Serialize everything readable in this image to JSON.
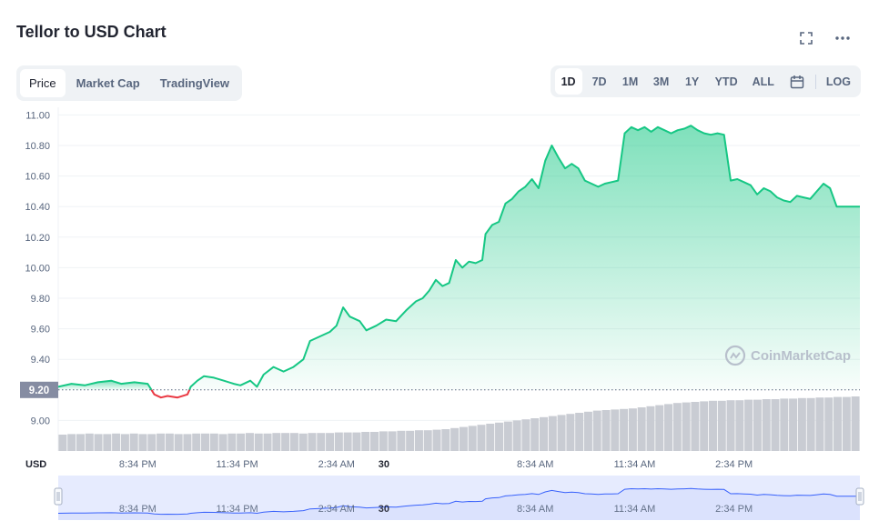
{
  "header": {
    "title": "Tellor to USD Chart"
  },
  "tabs": [
    {
      "label": "Price",
      "active": true
    },
    {
      "label": "Market Cap",
      "active": false
    },
    {
      "label": "TradingView",
      "active": false
    }
  ],
  "ranges": [
    {
      "label": "1D",
      "active": true
    },
    {
      "label": "7D",
      "active": false
    },
    {
      "label": "1M",
      "active": false
    },
    {
      "label": "3M",
      "active": false
    },
    {
      "label": "1Y",
      "active": false
    },
    {
      "label": "YTD",
      "active": false
    },
    {
      "label": "ALL",
      "active": false
    }
  ],
  "log_label": "LOG",
  "watermark": "CoinMarketCap",
  "colors": {
    "up": "#16c784",
    "down": "#ea3943",
    "volume": "#c9ccd3",
    "navigator_line": "#3861fb",
    "navigator_fill": "#e6ebfe",
    "current_badge": "#858ca2"
  },
  "chart_data": {
    "type": "area",
    "currency_label": "USD",
    "current_price_label": "9.20",
    "baseline": 9.2,
    "ylim": [
      8.8,
      11.05
    ],
    "yticks": [
      9.0,
      9.2,
      9.4,
      9.6,
      9.8,
      10.0,
      10.2,
      10.4,
      10.6,
      10.8,
      11.0
    ],
    "ytick_labels": [
      "9.00",
      "9.20",
      "9.40",
      "9.60",
      "9.80",
      "10.00",
      "10.20",
      "10.40",
      "10.60",
      "10.80",
      "11.00"
    ],
    "x_ticks": [
      {
        "label": "8:34 PM",
        "hour": 1.0,
        "bold": false
      },
      {
        "label": "11:34 PM",
        "hour": 4.0,
        "bold": false
      },
      {
        "label": "2:34 AM",
        "hour": 7.0,
        "bold": false
      },
      {
        "label": "30",
        "hour": 8.43,
        "bold": true
      },
      {
        "label": "8:34 AM",
        "hour": 13.0,
        "bold": false
      },
      {
        "label": "11:34 AM",
        "hour": 16.0,
        "bold": false
      },
      {
        "label": "2:34 PM",
        "hour": 19.0,
        "bold": false
      }
    ],
    "x_range_hours": [
      -1.4,
      22.8
    ],
    "series": [
      {
        "points": [
          [
            -1.4,
            9.22
          ],
          [
            -1.0,
            9.24
          ],
          [
            -0.6,
            9.23
          ],
          [
            -0.2,
            9.25
          ],
          [
            0.2,
            9.26
          ],
          [
            0.5,
            9.24
          ],
          [
            0.9,
            9.25
          ],
          [
            1.3,
            9.24
          ],
          [
            1.5,
            9.17
          ],
          [
            1.7,
            9.15
          ],
          [
            1.9,
            9.16
          ],
          [
            2.2,
            9.15
          ],
          [
            2.5,
            9.17
          ],
          [
            2.6,
            9.22
          ],
          [
            2.8,
            9.26
          ],
          [
            3.0,
            9.29
          ],
          [
            3.3,
            9.28
          ],
          [
            3.6,
            9.26
          ],
          [
            3.9,
            9.24
          ],
          [
            4.1,
            9.23
          ],
          [
            4.4,
            9.26
          ],
          [
            4.6,
            9.22
          ],
          [
            4.8,
            9.3
          ],
          [
            5.1,
            9.35
          ],
          [
            5.4,
            9.32
          ],
          [
            5.7,
            9.35
          ],
          [
            6.0,
            9.4
          ],
          [
            6.2,
            9.52
          ],
          [
            6.5,
            9.55
          ],
          [
            6.8,
            9.58
          ],
          [
            7.0,
            9.62
          ],
          [
            7.2,
            9.74
          ],
          [
            7.4,
            9.68
          ],
          [
            7.7,
            9.65
          ],
          [
            7.9,
            9.59
          ],
          [
            8.2,
            9.62
          ],
          [
            8.5,
            9.66
          ],
          [
            8.8,
            9.65
          ],
          [
            9.1,
            9.72
          ],
          [
            9.4,
            9.78
          ],
          [
            9.6,
            9.8
          ],
          [
            9.8,
            9.85
          ],
          [
            10.0,
            9.92
          ],
          [
            10.2,
            9.88
          ],
          [
            10.4,
            9.9
          ],
          [
            10.6,
            10.05
          ],
          [
            10.8,
            10.0
          ],
          [
            11.0,
            10.04
          ],
          [
            11.2,
            10.03
          ],
          [
            11.4,
            10.05
          ],
          [
            11.5,
            10.22
          ],
          [
            11.7,
            10.28
          ],
          [
            11.9,
            10.3
          ],
          [
            12.1,
            10.42
          ],
          [
            12.3,
            10.45
          ],
          [
            12.5,
            10.5
          ],
          [
            12.7,
            10.53
          ],
          [
            12.9,
            10.58
          ],
          [
            13.1,
            10.52
          ],
          [
            13.3,
            10.7
          ],
          [
            13.5,
            10.8
          ],
          [
            13.7,
            10.72
          ],
          [
            13.9,
            10.65
          ],
          [
            14.1,
            10.68
          ],
          [
            14.3,
            10.65
          ],
          [
            14.5,
            10.57
          ],
          [
            14.7,
            10.55
          ],
          [
            14.9,
            10.53
          ],
          [
            15.1,
            10.55
          ],
          [
            15.3,
            10.56
          ],
          [
            15.5,
            10.57
          ],
          [
            15.7,
            10.88
          ],
          [
            15.9,
            10.92
          ],
          [
            16.1,
            10.9
          ],
          [
            16.3,
            10.92
          ],
          [
            16.5,
            10.89
          ],
          [
            16.7,
            10.92
          ],
          [
            16.9,
            10.9
          ],
          [
            17.1,
            10.88
          ],
          [
            17.3,
            10.9
          ],
          [
            17.5,
            10.91
          ],
          [
            17.7,
            10.93
          ],
          [
            17.9,
            10.9
          ],
          [
            18.1,
            10.88
          ],
          [
            18.3,
            10.87
          ],
          [
            18.5,
            10.88
          ],
          [
            18.7,
            10.87
          ],
          [
            18.9,
            10.57
          ],
          [
            19.1,
            10.58
          ],
          [
            19.3,
            10.56
          ],
          [
            19.5,
            10.54
          ],
          [
            19.7,
            10.48
          ],
          [
            19.9,
            10.52
          ],
          [
            20.1,
            10.5
          ],
          [
            20.3,
            10.46
          ],
          [
            20.5,
            10.44
          ],
          [
            20.7,
            10.43
          ],
          [
            20.9,
            10.47
          ],
          [
            21.1,
            10.46
          ],
          [
            21.3,
            10.45
          ],
          [
            21.5,
            10.5
          ],
          [
            21.7,
            10.55
          ],
          [
            21.9,
            10.52
          ],
          [
            22.1,
            10.4
          ],
          [
            22.5,
            10.4
          ],
          [
            22.8,
            10.4
          ]
        ]
      }
    ],
    "volume": [
      0.3,
      0.31,
      0.31,
      0.32,
      0.31,
      0.31,
      0.32,
      0.31,
      0.32,
      0.31,
      0.31,
      0.32,
      0.32,
      0.31,
      0.31,
      0.32,
      0.32,
      0.32,
      0.31,
      0.32,
      0.32,
      0.33,
      0.32,
      0.32,
      0.33,
      0.33,
      0.33,
      0.32,
      0.33,
      0.33,
      0.33,
      0.34,
      0.34,
      0.34,
      0.35,
      0.35,
      0.36,
      0.36,
      0.37,
      0.37,
      0.38,
      0.38,
      0.39,
      0.4,
      0.42,
      0.44,
      0.46,
      0.48,
      0.5,
      0.52,
      0.54,
      0.56,
      0.58,
      0.6,
      0.62,
      0.64,
      0.66,
      0.68,
      0.7,
      0.72,
      0.74,
      0.75,
      0.76,
      0.77,
      0.78,
      0.8,
      0.82,
      0.84,
      0.86,
      0.88,
      0.89,
      0.9,
      0.91,
      0.92,
      0.92,
      0.93,
      0.93,
      0.94,
      0.94,
      0.95,
      0.95,
      0.96,
      0.96,
      0.97,
      0.97,
      0.98,
      0.98,
      0.99,
      0.99,
      1.0
    ]
  }
}
